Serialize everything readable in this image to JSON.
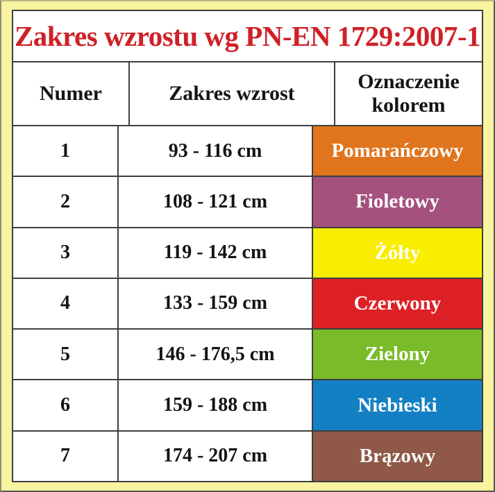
{
  "page": {
    "background": "#F8F4A1"
  },
  "title": {
    "text": "Zakres wzrostu wg PN-EN 1729:2007-1",
    "color": "#CE2127"
  },
  "table": {
    "border_color": "#3E3E3E",
    "headers": [
      "Numer",
      "Zakres wzrost",
      "Oznaczenie kolorem"
    ],
    "rows": [
      {
        "numer": "1",
        "zakres_wzrost": "93 - 116 cm",
        "kolor_label": "Pomarańczowy",
        "kolor_hex": "#E0751E",
        "label_color": "#FFFFFF"
      },
      {
        "numer": "2",
        "zakres_wzrost": "108 - 121 cm",
        "kolor_label": "Fioletowy",
        "kolor_hex": "#A4517D",
        "label_color": "#FFFFFF"
      },
      {
        "numer": "3",
        "zakres_wzrost": "119 - 142 cm",
        "kolor_label": "Żółty",
        "kolor_hex": "#F9ED00",
        "label_color": "#FFFFFF"
      },
      {
        "numer": "4",
        "zakres_wzrost": "133 - 159 cm",
        "kolor_label": "Czerwony",
        "kolor_hex": "#DD2026",
        "label_color": "#FFFFFF"
      },
      {
        "numer": "5",
        "zakres_wzrost": "146 - 176,5 cm",
        "kolor_label": "Zielony",
        "kolor_hex": "#79BB29",
        "label_color": "#FFFFFF"
      },
      {
        "numer": "6",
        "zakres_wzrost": "159 - 188 cm",
        "kolor_label": "Niebieski",
        "kolor_hex": "#1480C4",
        "label_color": "#FFFFFF"
      },
      {
        "numer": "7",
        "zakres_wzrost": "174 - 207 cm",
        "kolor_label": "Brązowy",
        "kolor_hex": "#8F5847",
        "label_color": "#FFFFFF"
      }
    ]
  },
  "chart_data": {
    "type": "table",
    "title": "Zakres wzrostu wg PN-EN 1729:2007-1",
    "columns": [
      "Numer",
      "Zakres wzrost",
      "Oznaczenie kolorem"
    ],
    "rows": [
      [
        "1",
        "93 - 116 cm",
        "Pomarańczowy"
      ],
      [
        "2",
        "108 - 121 cm",
        "Fioletowy"
      ],
      [
        "3",
        "119 - 142 cm",
        "Żółty"
      ],
      [
        "4",
        "133 - 159 cm",
        "Czerwony"
      ],
      [
        "5",
        "146 - 176,5 cm",
        "Zielony"
      ],
      [
        "6",
        "159 - 188 cm",
        "Niebieski"
      ],
      [
        "7",
        "174 - 207 cm",
        "Brązowy"
      ]
    ],
    "row_colors": [
      "#E0751E",
      "#A4517D",
      "#F9ED00",
      "#DD2026",
      "#79BB29",
      "#1480C4",
      "#8F5847"
    ],
    "legend_position": "none",
    "grid": true
  }
}
